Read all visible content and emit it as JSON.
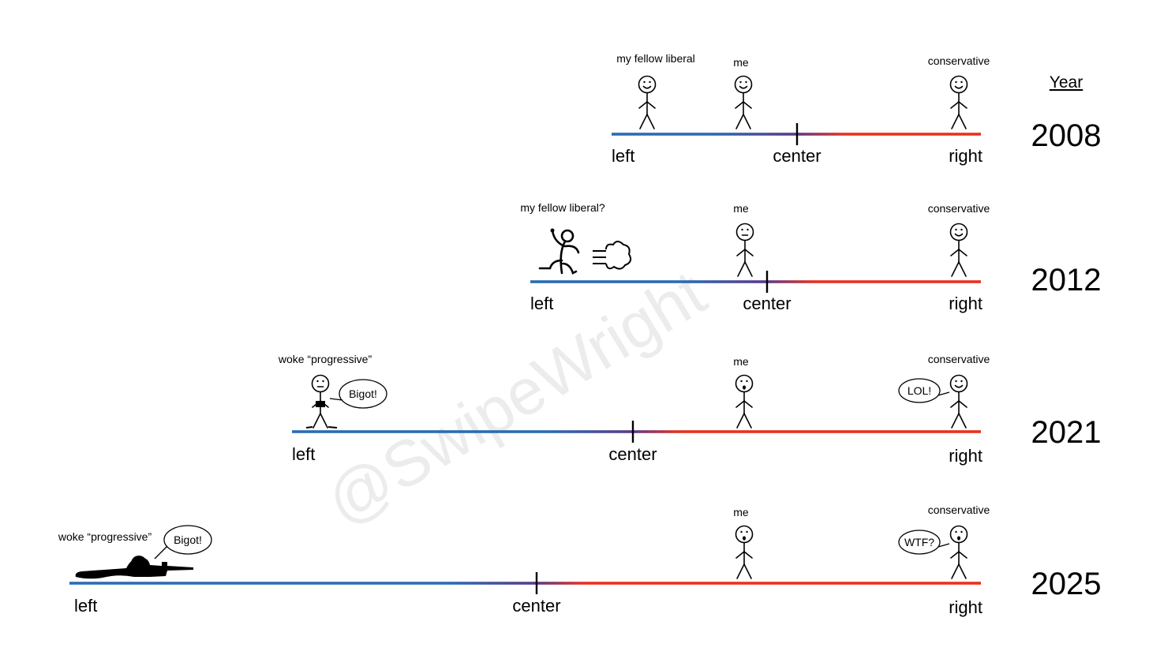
{
  "watermark": "@SwipeWright",
  "year_header": "Year",
  "colors": {
    "left": "#2b6cb3",
    "middle": "#5b3a8a",
    "right": "#e8321f",
    "watermark": "#ececec"
  },
  "rows": [
    {
      "year": "2008",
      "axis": {
        "left": "left",
        "center": "center",
        "right": "right"
      },
      "figures": [
        {
          "label": "my fellow liberal",
          "icon": "smiling-stick-figure"
        },
        {
          "label": "me",
          "icon": "smiling-stick-figure"
        },
        {
          "label": "conservative",
          "icon": "smiling-stick-figure"
        }
      ]
    },
    {
      "year": "2012",
      "axis": {
        "left": "left",
        "center": "center",
        "right": "right"
      },
      "figures": [
        {
          "label": "my fellow liberal?",
          "icon": "running-stick-figure-with-dust-cloud"
        },
        {
          "label": "me",
          "icon": "neutral-stick-figure"
        },
        {
          "label": "conservative",
          "icon": "smiling-stick-figure"
        }
      ]
    },
    {
      "year": "2021",
      "axis": {
        "left": "left",
        "center": "center",
        "right": "right"
      },
      "figures": [
        {
          "label": "woke “progressive”",
          "icon": "angry-stick-figure",
          "speech": "Bigot!"
        },
        {
          "label": "me",
          "icon": "surprised-stick-figure"
        },
        {
          "label": "conservative",
          "icon": "smiling-stick-figure",
          "speech": "LOL!"
        }
      ]
    },
    {
      "year": "2025",
      "axis": {
        "left": "left",
        "center": "center",
        "right": "right"
      },
      "figures": [
        {
          "label": "woke “progressive”",
          "icon": "prone-sniper-silhouette",
          "speech": "Bigot!"
        },
        {
          "label": "me",
          "icon": "surprised-stick-figure"
        },
        {
          "label": "conservative",
          "icon": "surprised-stick-figure",
          "speech": "WTF?"
        }
      ]
    }
  ]
}
